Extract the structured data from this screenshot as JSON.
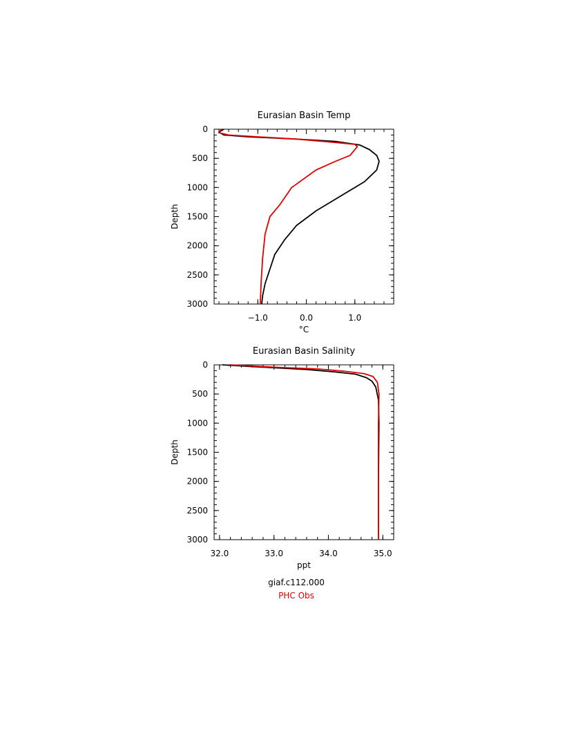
{
  "legend": [
    {
      "label": "giaf.c112.000",
      "color": "#000000"
    },
    {
      "label": "PHC Obs",
      "color": "#e00000"
    }
  ],
  "chart_data": [
    {
      "type": "line",
      "title": "Eurasian Basin Temp",
      "xlabel": "°C",
      "ylabel": "Depth",
      "xlim": [
        -1.9,
        1.8
      ],
      "ylim": [
        3000,
        0
      ],
      "y_inverted": true,
      "xticks": [
        -1.0,
        0.0,
        1.0
      ],
      "xtick_labels": [
        "−1.0",
        "0.0",
        "1.0"
      ],
      "yticks": [
        0,
        500,
        1000,
        1500,
        2000,
        2500,
        3000
      ],
      "ytick_labels": [
        "0",
        "500",
        "1000",
        "1500",
        "2000",
        "2500",
        "3000"
      ],
      "grid": false,
      "series": [
        {
          "name": "giaf.c112.000",
          "color": "#000000",
          "x": [
            -1.7,
            -1.8,
            -1.7,
            -1.2,
            -0.2,
            0.6,
            1.1,
            1.3,
            1.45,
            1.5,
            1.45,
            1.2,
            0.7,
            0.2,
            -0.2,
            -0.45,
            -0.65,
            -0.75,
            -0.85,
            -0.9,
            -0.92
          ],
          "y": [
            0,
            50,
            100,
            130,
            170,
            210,
            270,
            350,
            450,
            550,
            700,
            900,
            1150,
            1400,
            1650,
            1900,
            2150,
            2400,
            2650,
            2850,
            3000
          ]
        },
        {
          "name": "PHC Obs",
          "color": "#e00000",
          "x": [
            -1.75,
            -1.8,
            -1.6,
            -1.0,
            -0.2,
            0.5,
            1.0,
            1.05,
            0.9,
            0.6,
            0.2,
            -0.3,
            -0.55,
            -0.75,
            -0.85,
            -0.9,
            -0.93,
            -0.95
          ],
          "y": [
            0,
            60,
            100,
            130,
            170,
            220,
            260,
            300,
            450,
            550,
            700,
            1000,
            1300,
            1500,
            1800,
            2200,
            2600,
            3000
          ]
        }
      ]
    },
    {
      "type": "line",
      "title": "Eurasian Basin Salinity",
      "xlabel": "ppt",
      "ylabel": "Depth",
      "xlim": [
        31.9,
        35.2
      ],
      "ylim": [
        3000,
        0
      ],
      "y_inverted": true,
      "xticks": [
        32.0,
        33.0,
        34.0,
        35.0
      ],
      "xtick_labels": [
        "32.0",
        "33.0",
        "34.0",
        "35.0"
      ],
      "yticks": [
        0,
        500,
        1000,
        1500,
        2000,
        2500,
        3000
      ],
      "ytick_labels": [
        "0",
        "500",
        "1000",
        "1500",
        "2000",
        "2500",
        "3000"
      ],
      "grid": false,
      "series": [
        {
          "name": "giaf.c112.000",
          "color": "#000000",
          "x": [
            32.05,
            32.5,
            33.0,
            33.6,
            34.1,
            34.5,
            34.7,
            34.8,
            34.87,
            34.92,
            34.93,
            34.92,
            34.92
          ],
          "y": [
            0,
            25,
            50,
            80,
            120,
            160,
            220,
            280,
            380,
            600,
            1000,
            2000,
            3000
          ]
        },
        {
          "name": "PHC Obs",
          "color": "#e00000",
          "x": [
            32.2,
            33.0,
            33.8,
            34.3,
            34.65,
            34.82,
            34.9,
            34.93,
            34.92,
            34.92
          ],
          "y": [
            0,
            40,
            70,
            110,
            150,
            200,
            300,
            500,
            1000,
            3000
          ]
        }
      ]
    }
  ]
}
